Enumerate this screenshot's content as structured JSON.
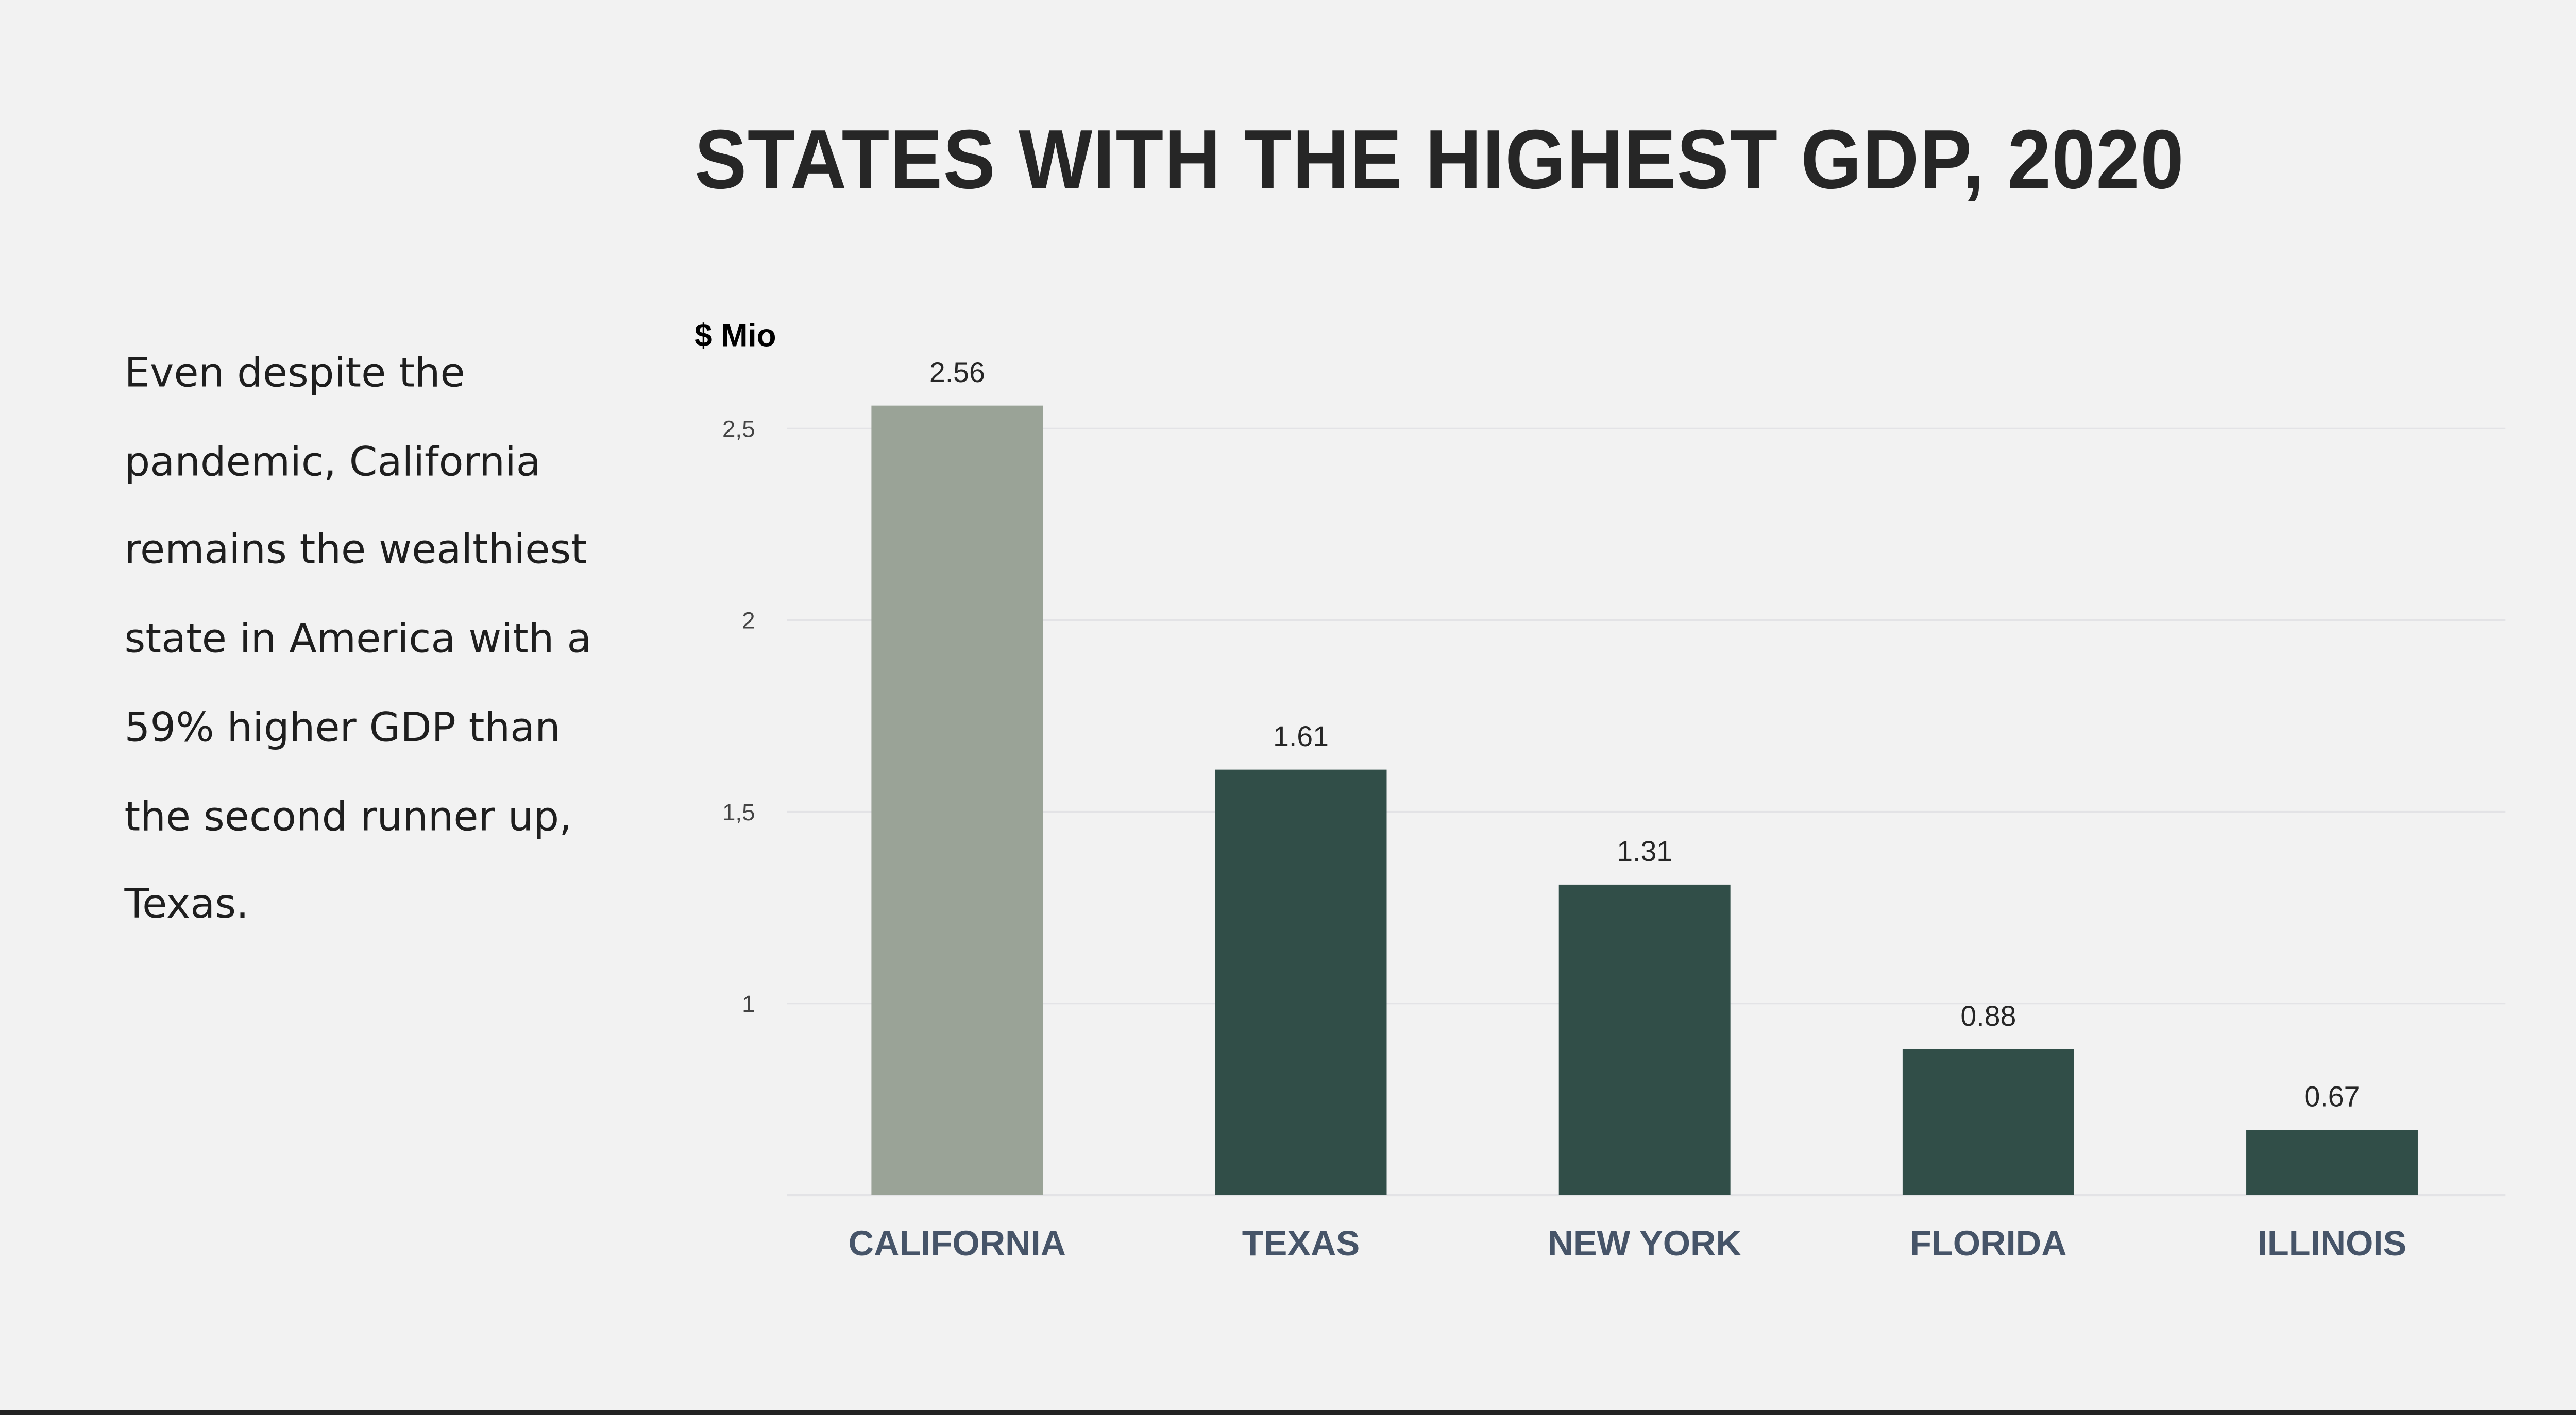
{
  "title": "STATES WITH THE HIGHEST GDP, 2020",
  "description": "Even despite the pandemic, California remains the wealthiest state in America with a 59% higher GDP than the second runner up, Texas.",
  "chart_data": {
    "type": "bar",
    "title": "STATES WITH THE HIGHEST GDP, 2020",
    "ylabel": "$ Mio",
    "xlabel": "",
    "categories": [
      "CALIFORNIA",
      "TEXAS",
      "NEW YORK",
      "FLORIDA",
      "ILLINOIS"
    ],
    "values": [
      2.56,
      1.61,
      1.31,
      0.88,
      0.67
    ],
    "data_labels": [
      "2.56",
      "1.61",
      "1.31",
      "0.88",
      "0.67"
    ],
    "ylim": [
      0.5,
      2.5
    ],
    "yticks": [
      1,
      1.5,
      2,
      2.5
    ],
    "ytick_labels": [
      "1",
      "1,5",
      "2",
      "2,5"
    ],
    "grid": true,
    "colors": {
      "highlight": "#9aa397",
      "default": "#314e48",
      "category_label": "#465468",
      "gridline": "#e3e3e6"
    }
  }
}
